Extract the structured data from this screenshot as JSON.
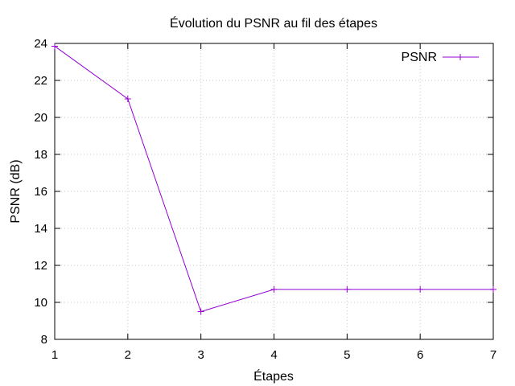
{
  "chart_data": {
    "type": "line",
    "title": "Évolution du PSNR au fil des étapes",
    "xlabel": "Étapes",
    "ylabel": "PSNR (dB)",
    "xlim": [
      1,
      7
    ],
    "ylim": [
      8,
      24
    ],
    "xticks": [
      1,
      2,
      3,
      4,
      5,
      6,
      7
    ],
    "yticks": [
      8,
      10,
      12,
      14,
      16,
      18,
      20,
      22,
      24
    ],
    "grid": true,
    "legend_position": "top-right",
    "series": [
      {
        "name": "PSNR",
        "color": "#9400d3",
        "marker": "plus",
        "x": [
          1,
          2,
          3,
          4,
          5,
          6,
          7
        ],
        "y": [
          23.85,
          21.0,
          9.5,
          10.7,
          10.7,
          10.7,
          10.7
        ]
      }
    ]
  }
}
